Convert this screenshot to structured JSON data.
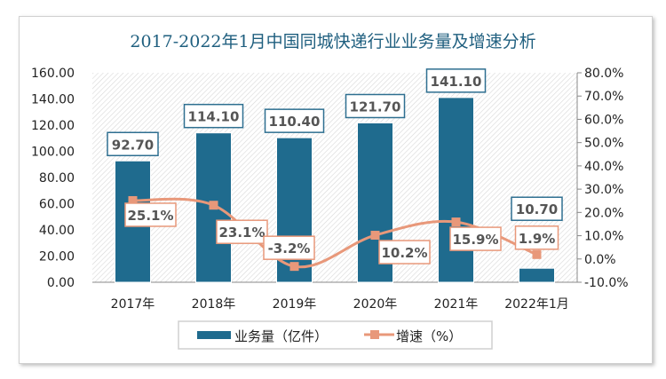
{
  "chart_data": {
    "type": "bar+line",
    "title": "2017-2022年1月中国同城快递行业业务量及增速分析",
    "categories": [
      "2017年",
      "2018年",
      "2019年",
      "2020年",
      "2021年",
      "2022年1月"
    ],
    "series": [
      {
        "name": "业务量（亿件）",
        "type": "bar",
        "axis": "left",
        "values": [
          92.7,
          114.1,
          110.4,
          121.7,
          141.1,
          10.7
        ],
        "labels": [
          "92.70",
          "114.10",
          "110.40",
          "121.70",
          "141.10",
          "10.70"
        ],
        "color": "#1f6b8e"
      },
      {
        "name": "增速（%）",
        "type": "line",
        "axis": "right",
        "values": [
          25.1,
          23.1,
          -3.2,
          10.2,
          15.9,
          1.9
        ],
        "labels": [
          "25.1%",
          "23.1%",
          "-3.2%",
          "10.2%",
          "15.9%",
          "1.9%"
        ],
        "color": "#e8987a",
        "smooth": true
      }
    ],
    "left_axis": {
      "range": [
        0,
        160
      ],
      "ticks": [
        "0.00",
        "20.00",
        "40.00",
        "60.00",
        "80.00",
        "100.00",
        "120.00",
        "140.00",
        "160.00"
      ]
    },
    "right_axis": {
      "range": [
        -10,
        80
      ],
      "ticks": [
        "-10.0%",
        "0.0%",
        "10.0%",
        "20.0%",
        "30.0%",
        "40.0%",
        "50.0%",
        "60.0%",
        "70.0%",
        "80.0%"
      ]
    },
    "legend": "bottom",
    "grid": false,
    "title_color": "#1f5f7f"
  }
}
